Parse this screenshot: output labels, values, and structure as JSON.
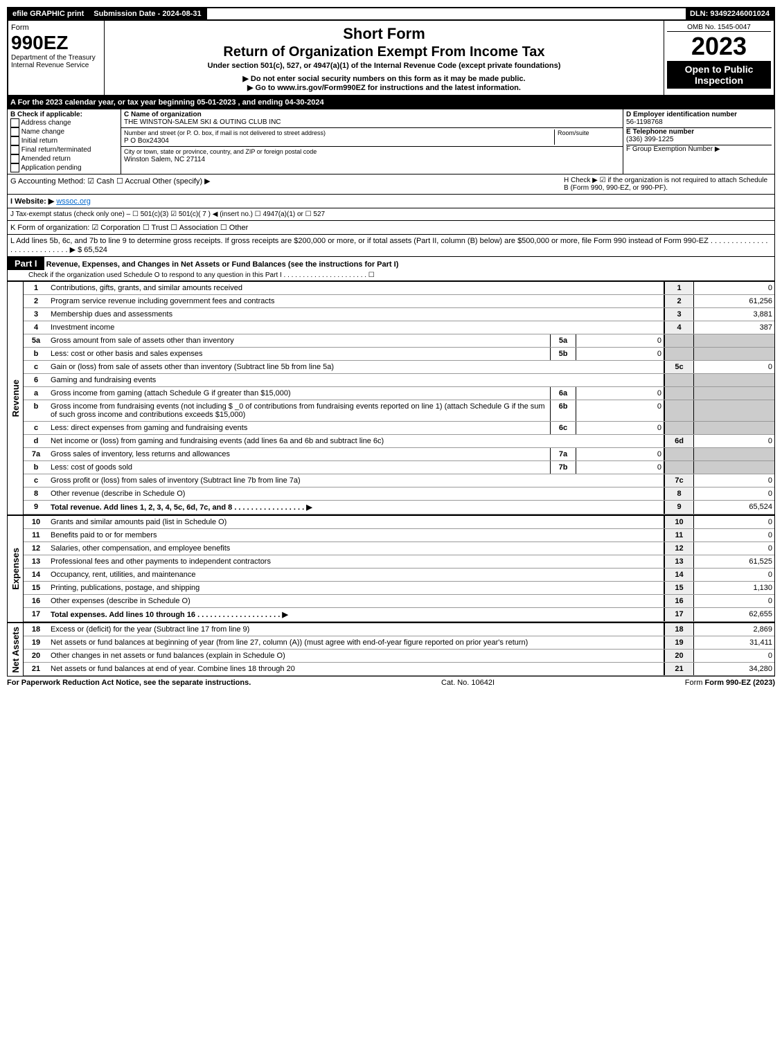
{
  "header": {
    "efile": "efile GRAPHIC print",
    "subdate_label": "Submission Date - 2024-08-31",
    "dln": "DLN: 93492246001024"
  },
  "title": {
    "form_word": "Form",
    "form_no": "990EZ",
    "dept": "Department of the Treasury\nInternal Revenue Service",
    "short": "Short Form",
    "main": "Return of Organization Exempt From Income Tax",
    "under": "Under section 501(c), 527, or 4947(a)(1) of the Internal Revenue Code (except private foundations)",
    "nossn": "▶ Do not enter social security numbers on this form as it may be made public.",
    "goto": "▶ Go to www.irs.gov/Form990EZ for instructions and the latest information.",
    "omb": "OMB No. 1545-0047",
    "year": "2023",
    "open": "Open to Public Inspection"
  },
  "A": "A  For the 2023 calendar year, or tax year beginning 05-01-2023 , and ending 04-30-2024",
  "B": {
    "label": "B  Check if applicable:",
    "opts": [
      "Address change",
      "Name change",
      "Initial return",
      "Final return/terminated",
      "Amended return",
      "Application pending"
    ]
  },
  "C": {
    "name_lbl": "C Name of organization",
    "name": "THE WINSTON-SALEM SKI & OUTING CLUB INC",
    "street_lbl": "Number and street (or P. O. box, if mail is not delivered to street address)",
    "street": "P O Box24304",
    "room_lbl": "Room/suite",
    "city_lbl": "City or town, state or province, country, and ZIP or foreign postal code",
    "city": "Winston Salem, NC  27114"
  },
  "D": {
    "lbl": "D Employer identification number",
    "val": "56-1198768"
  },
  "E": {
    "lbl": "E Telephone number",
    "val": "(336) 399-1225"
  },
  "F": {
    "lbl": "F Group Exemption Number  ▶"
  },
  "G": "G Accounting Method:   ☑ Cash   ☐ Accrual   Other (specify) ▶",
  "H": "H   Check ▶  ☑  if the organization is not required to attach Schedule B (Form 990, 990-EZ, or 990-PF).",
  "I": {
    "lbl": "I Website: ▶",
    "val": "wssoc.org"
  },
  "J": "J Tax-exempt status (check only one) – ☐ 501(c)(3)  ☑ 501(c)( 7 ) ◀ (insert no.)  ☐ 4947(a)(1) or  ☐ 527",
  "K": "K Form of organization:   ☑ Corporation   ☐ Trust   ☐ Association   ☐ Other",
  "L": {
    "text": "L Add lines 5b, 6c, and 7b to line 9 to determine gross receipts. If gross receipts are $200,000 or more, or if total assets (Part II, column (B) below) are $500,000 or more, file Form 990 instead of Form 990-EZ  .  .  .  .  .  .  .  .  .  .  .  .  .  .  .  .  .  .  .  .  .  .  .  .  .  .  .  .  ▶ $",
    "val": "65,524"
  },
  "part1": {
    "title": "Part I",
    "heading": "Revenue, Expenses, and Changes in Net Assets or Fund Balances (see the instructions for Part I)",
    "check": "Check if the organization used Schedule O to respond to any question in this Part I .  .  .  .  .  .  .  .  .  .  .  .  .  .  .  .  .  .  .  .  .  .  ☐"
  },
  "revenue_label": "Revenue",
  "expenses_label": "Expenses",
  "netassets_label": "Net Assets",
  "lines": {
    "1": {
      "d": "Contributions, gifts, grants, and similar amounts received",
      "v": "0"
    },
    "2": {
      "d": "Program service revenue including government fees and contracts",
      "v": "61,256"
    },
    "3": {
      "d": "Membership dues and assessments",
      "v": "3,881"
    },
    "4": {
      "d": "Investment income",
      "v": "387"
    },
    "5a": {
      "d": "Gross amount from sale of assets other than inventory",
      "m": "5a",
      "mv": "0"
    },
    "5b": {
      "d": "Less: cost or other basis and sales expenses",
      "m": "5b",
      "mv": "0"
    },
    "5c": {
      "d": "Gain or (loss) from sale of assets other than inventory (Subtract line 5b from line 5a)",
      "r": "5c",
      "v": "0"
    },
    "6": {
      "d": "Gaming and fundraising events"
    },
    "6a": {
      "d": "Gross income from gaming (attach Schedule G if greater than $15,000)",
      "m": "6a",
      "mv": "0"
    },
    "6b": {
      "d": "Gross income from fundraising events (not including $ _0 of contributions from fundraising events reported on line 1) (attach Schedule G if the sum of such gross income and contributions exceeds $15,000)",
      "m": "6b",
      "mv": "0"
    },
    "6c": {
      "d": "Less: direct expenses from gaming and fundraising events",
      "m": "6c",
      "mv": "0"
    },
    "6d": {
      "d": "Net income or (loss) from gaming and fundraising events (add lines 6a and 6b and subtract line 6c)",
      "r": "6d",
      "v": "0"
    },
    "7a": {
      "d": "Gross sales of inventory, less returns and allowances",
      "m": "7a",
      "mv": "0"
    },
    "7b": {
      "d": "Less: cost of goods sold",
      "m": "7b",
      "mv": "0"
    },
    "7c": {
      "d": "Gross profit or (loss) from sales of inventory (Subtract line 7b from line 7a)",
      "r": "7c",
      "v": "0"
    },
    "8": {
      "d": "Other revenue (describe in Schedule O)",
      "v": "0"
    },
    "9": {
      "d": "Total revenue. Add lines 1, 2, 3, 4, 5c, 6d, 7c, and 8   .  .  .  .  .  .  .  .  .  .  .  .  .  .  .  .  .  ▶",
      "v": "65,524",
      "bold": true
    },
    "10": {
      "d": "Grants and similar amounts paid (list in Schedule O)",
      "v": "0"
    },
    "11": {
      "d": "Benefits paid to or for members",
      "v": "0"
    },
    "12": {
      "d": "Salaries, other compensation, and employee benefits",
      "v": "0"
    },
    "13": {
      "d": "Professional fees and other payments to independent contractors",
      "v": "61,525"
    },
    "14": {
      "d": "Occupancy, rent, utilities, and maintenance",
      "v": "0"
    },
    "15": {
      "d": "Printing, publications, postage, and shipping",
      "v": "1,130"
    },
    "16": {
      "d": "Other expenses (describe in Schedule O)",
      "v": "0"
    },
    "17": {
      "d": "Total expenses. Add lines 10 through 16   .  .  .  .  .  .  .  .  .  .  .  .  .  .  .  .  .  .  .  .  ▶",
      "v": "62,655",
      "bold": true
    },
    "18": {
      "d": "Excess or (deficit) for the year (Subtract line 17 from line 9)",
      "v": "2,869"
    },
    "19": {
      "d": "Net assets or fund balances at beginning of year (from line 27, column (A)) (must agree with end-of-year figure reported on prior year's return)",
      "v": "31,411"
    },
    "20": {
      "d": "Other changes in net assets or fund balances (explain in Schedule O)",
      "v": "0"
    },
    "21": {
      "d": "Net assets or fund balances at end of year. Combine lines 18 through 20",
      "v": "34,280"
    }
  },
  "footer": {
    "pra": "For Paperwork Reduction Act Notice, see the separate instructions.",
    "cat": "Cat. No. 10642I",
    "form": "Form 990-EZ (2023)"
  }
}
